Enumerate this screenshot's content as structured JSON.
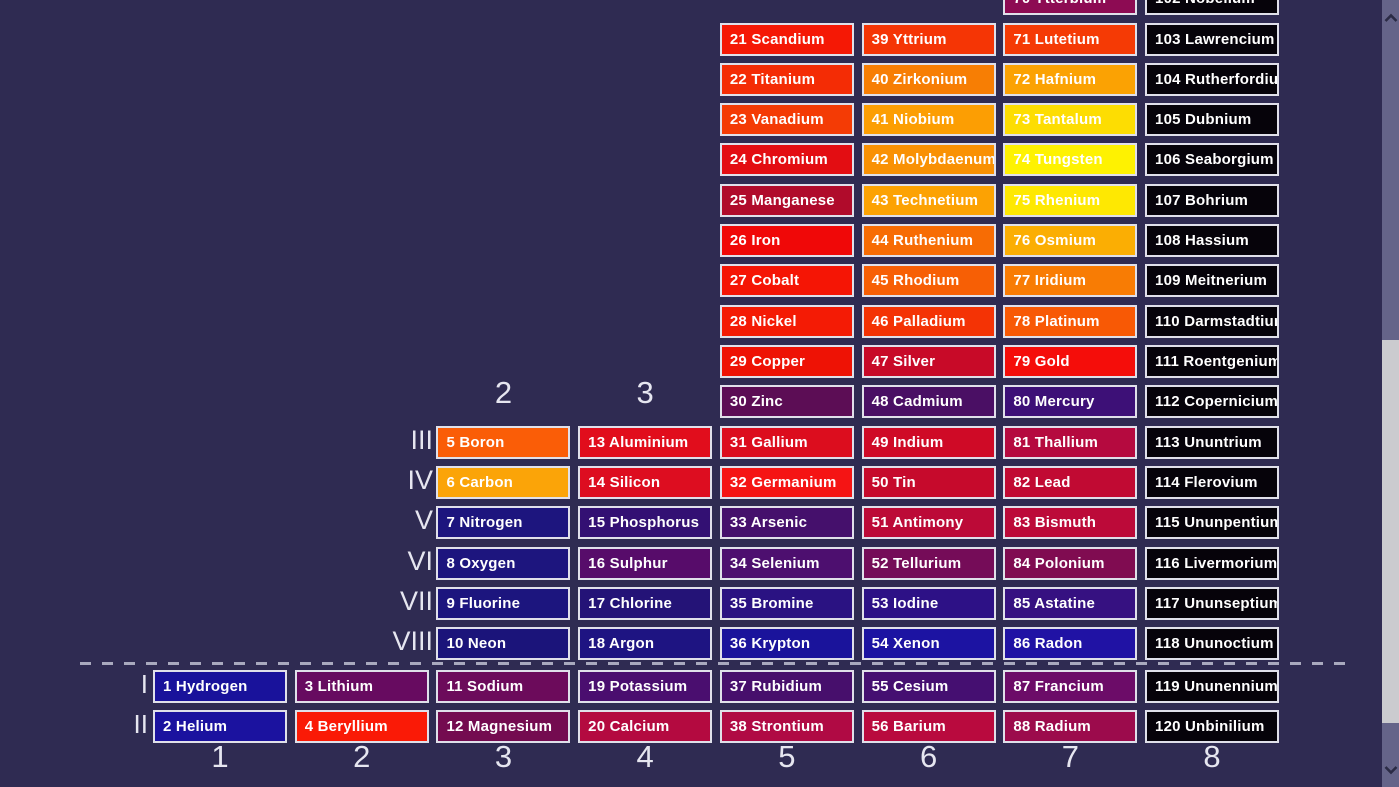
{
  "background_color": "#2F2B52",
  "tile_style": {
    "border_color": "#E0E0EA",
    "text_color": "#FFFFFF"
  },
  "period_headers_top": [
    {
      "label": "2",
      "column": 3
    },
    {
      "label": "3",
      "column": 4
    }
  ],
  "group_labels_upper": [
    "III",
    "IV",
    "V",
    "VI",
    "VII",
    "VIII"
  ],
  "group_labels_lower": [
    "I",
    "II"
  ],
  "period_numbers_bottom": [
    "1",
    "2",
    "3",
    "4",
    "5",
    "6",
    "7",
    "8"
  ],
  "scrollbar": {
    "track_color": "#656489",
    "thumb_color": "#CBCBCF",
    "arrow_color": "#2B2B45",
    "up_icon": "chevron-up",
    "down_icon": "chevron-down"
  },
  "elements": [
    {
      "number": 1,
      "name": "Hydrogen",
      "column": 1,
      "row": 16,
      "color": "#19129B"
    },
    {
      "number": 2,
      "name": "Helium",
      "column": 1,
      "row": 17,
      "color": "#1B129F"
    },
    {
      "number": 3,
      "name": "Lithium",
      "column": 2,
      "row": 16,
      "color": "#670B60"
    },
    {
      "number": 4,
      "name": "Beryllium",
      "column": 2,
      "row": 17,
      "color": "#FA1A06"
    },
    {
      "number": 5,
      "name": "Boron",
      "column": 3,
      "row": 10,
      "color": "#FA5D07"
    },
    {
      "number": 6,
      "name": "Carbon",
      "column": 3,
      "row": 11,
      "color": "#FBA408"
    },
    {
      "number": 7,
      "name": "Nitrogen",
      "column": 3,
      "row": 12,
      "color": "#1D157E"
    },
    {
      "number": 8,
      "name": "Oxygen",
      "column": 3,
      "row": 13,
      "color": "#1D157E"
    },
    {
      "number": 9,
      "name": "Fluorine",
      "column": 3,
      "row": 14,
      "color": "#1C157E"
    },
    {
      "number": 10,
      "name": "Neon",
      "column": 3,
      "row": 15,
      "color": "#1B147A"
    },
    {
      "number": 11,
      "name": "Sodium",
      "column": 3,
      "row": 16,
      "color": "#6C0B5B"
    },
    {
      "number": 12,
      "name": "Magnesium",
      "column": 3,
      "row": 17,
      "color": "#740B50"
    },
    {
      "number": 13,
      "name": "Aluminium",
      "column": 4,
      "row": 10,
      "color": "#E10D1C"
    },
    {
      "number": 14,
      "name": "Silicon",
      "column": 4,
      "row": 11,
      "color": "#DD0D20"
    },
    {
      "number": 15,
      "name": "Phosphorus",
      "column": 4,
      "row": 12,
      "color": "#331073"
    },
    {
      "number": 16,
      "name": "Sulphur",
      "column": 4,
      "row": 13,
      "color": "#570C6A"
    },
    {
      "number": 17,
      "name": "Chlorine",
      "column": 4,
      "row": 14,
      "color": "#241377"
    },
    {
      "number": 18,
      "name": "Argon",
      "column": 4,
      "row": 15,
      "color": "#1E1482"
    },
    {
      "number": 19,
      "name": "Potassium",
      "column": 4,
      "row": 16,
      "color": "#4A0E6F"
    },
    {
      "number": 20,
      "name": "Calcium",
      "column": 4,
      "row": 17,
      "color": "#B40A40"
    },
    {
      "number": 21,
      "name": "Scandium",
      "column": 5,
      "row": 0,
      "color": "#F51805"
    },
    {
      "number": 22,
      "name": "Titanium",
      "column": 5,
      "row": 1,
      "color": "#F42C05"
    },
    {
      "number": 23,
      "name": "Vanadium",
      "column": 5,
      "row": 2,
      "color": "#F43B05"
    },
    {
      "number": 24,
      "name": "Chromium",
      "column": 5,
      "row": 3,
      "color": "#E30D12"
    },
    {
      "number": 25,
      "name": "Manganese",
      "column": 5,
      "row": 4,
      "color": "#B00B2B"
    },
    {
      "number": 26,
      "name": "Iron",
      "column": 5,
      "row": 5,
      "color": "#F00808"
    },
    {
      "number": 27,
      "name": "Cobalt",
      "column": 5,
      "row": 6,
      "color": "#F51505"
    },
    {
      "number": 28,
      "name": "Nickel",
      "column": 5,
      "row": 7,
      "color": "#F41B05"
    },
    {
      "number": 29,
      "name": "Copper",
      "column": 5,
      "row": 8,
      "color": "#EE1205"
    },
    {
      "number": 30,
      "name": "Zinc",
      "column": 5,
      "row": 9,
      "color": "#5C0D55"
    },
    {
      "number": 31,
      "name": "Gallium",
      "column": 5,
      "row": 10,
      "color": "#DC0D1E"
    },
    {
      "number": 32,
      "name": "Germanium",
      "column": 5,
      "row": 11,
      "color": "#F51414"
    },
    {
      "number": 33,
      "name": "Arsenic",
      "column": 5,
      "row": 12,
      "color": "#45106C"
    },
    {
      "number": 34,
      "name": "Selenium",
      "column": 5,
      "row": 13,
      "color": "#4D0F6F"
    },
    {
      "number": 35,
      "name": "Bromine",
      "column": 5,
      "row": 14,
      "color": "#2A1282"
    },
    {
      "number": 36,
      "name": "Krypton",
      "column": 5,
      "row": 15,
      "color": "#1A139B"
    },
    {
      "number": 37,
      "name": "Rubidium",
      "column": 5,
      "row": 16,
      "color": "#470F6C"
    },
    {
      "number": 38,
      "name": "Strontium",
      "column": 5,
      "row": 17,
      "color": "#B00A44"
    },
    {
      "number": 39,
      "name": "Yttrium",
      "column": 6,
      "row": 0,
      "color": "#F53505"
    },
    {
      "number": 40,
      "name": "Zirkonium",
      "column": 6,
      "row": 1,
      "color": "#F77E04"
    },
    {
      "number": 41,
      "name": "Niobium",
      "column": 6,
      "row": 2,
      "color": "#FC9E03"
    },
    {
      "number": 42,
      "name": "Molybdaenum",
      "column": 6,
      "row": 3,
      "color": "#F99104"
    },
    {
      "number": 43,
      "name": "Technetium",
      "column": 6,
      "row": 4,
      "color": "#FCA203"
    },
    {
      "number": 44,
      "name": "Ruthenium",
      "column": 6,
      "row": 5,
      "color": "#F76C04"
    },
    {
      "number": 45,
      "name": "Rhodium",
      "column": 6,
      "row": 6,
      "color": "#F75F05"
    },
    {
      "number": 46,
      "name": "Palladium",
      "column": 6,
      "row": 7,
      "color": "#F43305"
    },
    {
      "number": 47,
      "name": "Silver",
      "column": 6,
      "row": 8,
      "color": "#C80A28"
    },
    {
      "number": 48,
      "name": "Cadmium",
      "column": 6,
      "row": 9,
      "color": "#4A0F64"
    },
    {
      "number": 49,
      "name": "Indium",
      "column": 6,
      "row": 10,
      "color": "#CF0A26"
    },
    {
      "number": 50,
      "name": "Tin",
      "column": 6,
      "row": 11,
      "color": "#C60A2C"
    },
    {
      "number": 51,
      "name": "Antimony",
      "column": 6,
      "row": 12,
      "color": "#BC0A37"
    },
    {
      "number": 52,
      "name": "Tellurium",
      "column": 6,
      "row": 13,
      "color": "#750C58"
    },
    {
      "number": 53,
      "name": "Iodine",
      "column": 6,
      "row": 14,
      "color": "#2D1186"
    },
    {
      "number": 54,
      "name": "Xenon",
      "column": 6,
      "row": 15,
      "color": "#1C13A2"
    },
    {
      "number": 55,
      "name": "Cesium",
      "column": 6,
      "row": 16,
      "color": "#450F71"
    },
    {
      "number": 56,
      "name": "Barium",
      "column": 6,
      "row": 17,
      "color": "#B90A3E"
    },
    {
      "number": 70,
      "name": "Ytterbium",
      "column": 7,
      "row": -1,
      "color": "#8D0B53"
    },
    {
      "number": 71,
      "name": "Lutetium",
      "column": 7,
      "row": 0,
      "color": "#F53A05"
    },
    {
      "number": 72,
      "name": "Hafnium",
      "column": 7,
      "row": 1,
      "color": "#FBA203"
    },
    {
      "number": 73,
      "name": "Tantalum",
      "column": 7,
      "row": 2,
      "color": "#FDDD02"
    },
    {
      "number": 74,
      "name": "Tungsten",
      "column": 7,
      "row": 3,
      "color": "#FEF201"
    },
    {
      "number": 75,
      "name": "Rhenium",
      "column": 7,
      "row": 4,
      "color": "#FEE802"
    },
    {
      "number": 76,
      "name": "Osmium",
      "column": 7,
      "row": 5,
      "color": "#FBAE03"
    },
    {
      "number": 77,
      "name": "Iridium",
      "column": 7,
      "row": 6,
      "color": "#F87C04"
    },
    {
      "number": 78,
      "name": "Platinum",
      "column": 7,
      "row": 7,
      "color": "#F85905"
    },
    {
      "number": 79,
      "name": "Gold",
      "column": 7,
      "row": 8,
      "color": "#F50D0A"
    },
    {
      "number": 80,
      "name": "Mercury",
      "column": 7,
      "row": 9,
      "color": "#3D1077"
    },
    {
      "number": 81,
      "name": "Thallium",
      "column": 7,
      "row": 10,
      "color": "#B50A3F"
    },
    {
      "number": 82,
      "name": "Lead",
      "column": 7,
      "row": 11,
      "color": "#C10A33"
    },
    {
      "number": 83,
      "name": "Bismuth",
      "column": 7,
      "row": 12,
      "color": "#BC0A39"
    },
    {
      "number": 84,
      "name": "Polonium",
      "column": 7,
      "row": 13,
      "color": "#800C51"
    },
    {
      "number": 85,
      "name": "Astatine",
      "column": 7,
      "row": 14,
      "color": "#361181"
    },
    {
      "number": 86,
      "name": "Radon",
      "column": 7,
      "row": 15,
      "color": "#2012A4"
    },
    {
      "number": 87,
      "name": "Francium",
      "column": 7,
      "row": 16,
      "color": "#6C0C68"
    },
    {
      "number": 88,
      "name": "Radium",
      "column": 7,
      "row": 17,
      "color": "#9C0B4C"
    },
    {
      "number": 102,
      "name": "Nobelium",
      "column": 8,
      "row": -1,
      "color": "#06030A"
    },
    {
      "number": 103,
      "name": "Lawrencium",
      "column": 8,
      "row": 0,
      "color": "#06030A"
    },
    {
      "number": 104,
      "name": "Rutherfordium",
      "column": 8,
      "row": 1,
      "color": "#06030A"
    },
    {
      "number": 105,
      "name": "Dubnium",
      "column": 8,
      "row": 2,
      "color": "#06030A"
    },
    {
      "number": 106,
      "name": "Seaborgium",
      "column": 8,
      "row": 3,
      "color": "#06030A"
    },
    {
      "number": 107,
      "name": "Bohrium",
      "column": 8,
      "row": 4,
      "color": "#06030A"
    },
    {
      "number": 108,
      "name": "Hassium",
      "column": 8,
      "row": 5,
      "color": "#06030A"
    },
    {
      "number": 109,
      "name": "Meitnerium",
      "column": 8,
      "row": 6,
      "color": "#06030A"
    },
    {
      "number": 110,
      "name": "Darmstadtium",
      "column": 8,
      "row": 7,
      "color": "#06030A"
    },
    {
      "number": 111,
      "name": "Roentgenium",
      "column": 8,
      "row": 8,
      "color": "#06030A"
    },
    {
      "number": 112,
      "name": "Copernicium",
      "column": 8,
      "row": 9,
      "color": "#06030A"
    },
    {
      "number": 113,
      "name": "Ununtrium",
      "column": 8,
      "row": 10,
      "color": "#06030A"
    },
    {
      "number": 114,
      "name": "Flerovium",
      "column": 8,
      "row": 11,
      "color": "#06030A"
    },
    {
      "number": 115,
      "name": "Ununpentium",
      "column": 8,
      "row": 12,
      "color": "#06030A"
    },
    {
      "number": 116,
      "name": "Livermorium",
      "column": 8,
      "row": 13,
      "color": "#06030A"
    },
    {
      "number": 117,
      "name": "Ununseptium",
      "column": 8,
      "row": 14,
      "color": "#06030A"
    },
    {
      "number": 118,
      "name": "Ununoctium",
      "column": 8,
      "row": 15,
      "color": "#06030A"
    },
    {
      "number": 119,
      "name": "Ununennium",
      "column": 8,
      "row": 16,
      "color": "#06030A"
    },
    {
      "number": 120,
      "name": "Unbinilium",
      "column": 8,
      "row": 17,
      "color": "#06030A"
    }
  ]
}
